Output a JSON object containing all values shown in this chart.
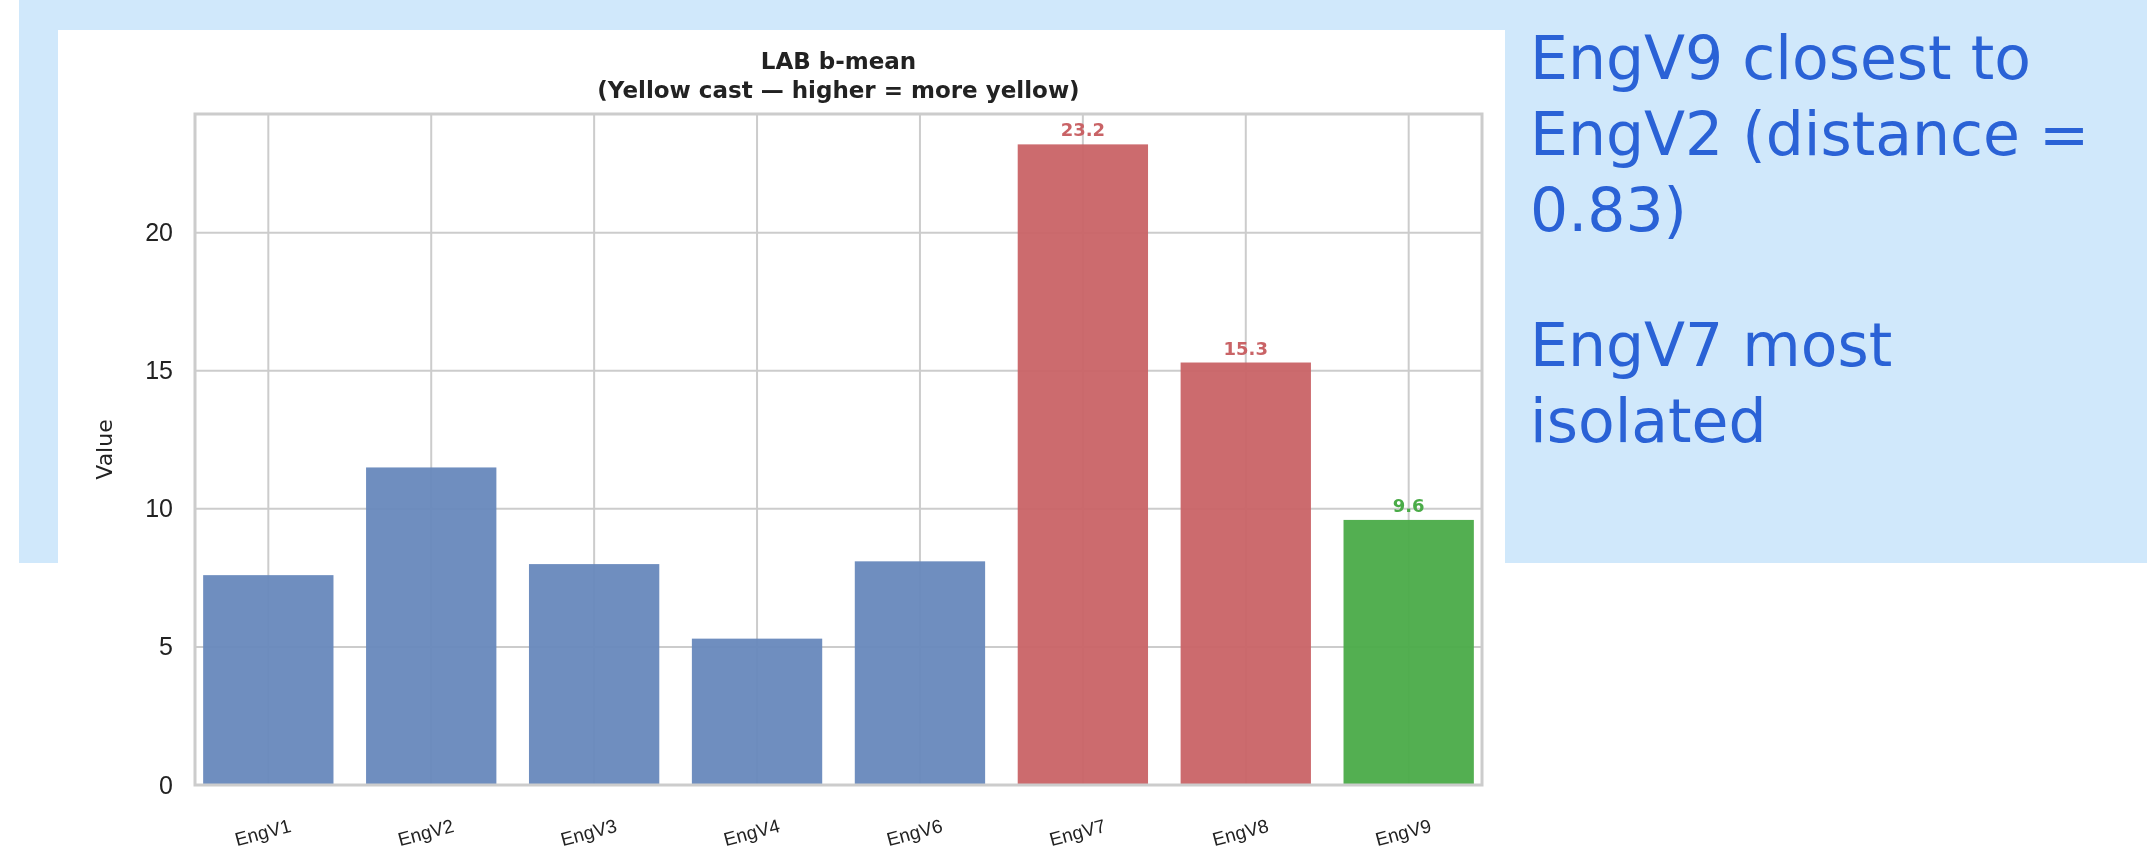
{
  "chart_data": {
    "type": "bar",
    "title": "LAB b-mean",
    "subtitle": "(Yellow cast — higher = more yellow)",
    "ylabel": "Value",
    "categories": [
      "EngV1",
      "EngV2",
      "EngV3",
      "EngV4",
      "EngV6",
      "EngV7",
      "EngV8",
      "EngV9"
    ],
    "values": [
      7.6,
      11.5,
      8.0,
      5.3,
      8.1,
      23.2,
      15.3,
      9.6
    ],
    "colors": [
      "#6788bc",
      "#6788bc",
      "#6788bc",
      "#6788bc",
      "#6788bc",
      "#c96366",
      "#c96366",
      "#4aab48"
    ],
    "value_labels": [
      null,
      null,
      null,
      null,
      null,
      "23.2",
      "15.3",
      "9.6"
    ],
    "ylim": [
      0,
      24.3
    ],
    "yticks": [
      0,
      5,
      10,
      15,
      20
    ],
    "grid": true,
    "annotations": [
      "EngV9 closest to EngV2 (distance = 0.83)",
      "EngV7 most isolated"
    ]
  }
}
